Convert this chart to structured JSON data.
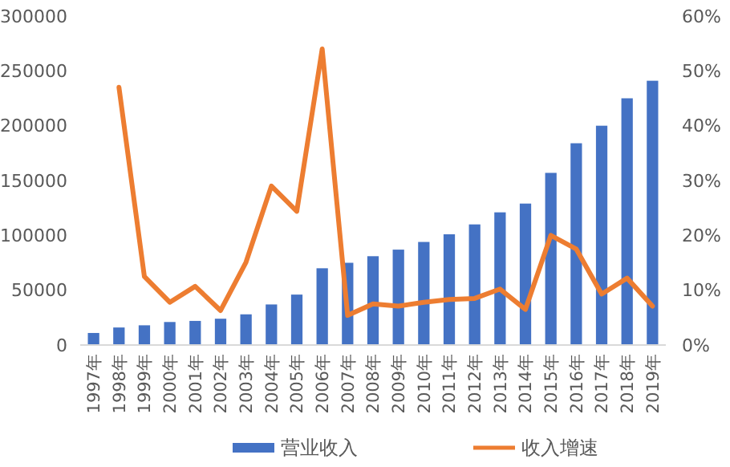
{
  "chart_data": {
    "type": "bar",
    "categories": [
      "1997年",
      "1998年",
      "1999年",
      "2000年",
      "2001年",
      "2002年",
      "2003年",
      "2004年",
      "2005年",
      "2006年",
      "2007年",
      "2008年",
      "2009年",
      "2010年",
      "2011年",
      "2012年",
      "2013年",
      "2014年",
      "2015年",
      "2016年",
      "2017年",
      "2018年",
      "2019年"
    ],
    "series": [
      {
        "name": "营业收入",
        "color": "#4472c4",
        "values": [
          11000,
          16000,
          18000,
          21000,
          22000,
          24000,
          28000,
          37000,
          46000,
          70000,
          75000,
          81000,
          87000,
          94000,
          101000,
          110000,
          121000,
          129000,
          157000,
          184000,
          200000,
          225000,
          241000
        ]
      },
      {
        "name": "收入增速",
        "type": "line",
        "axis": "y2",
        "color": "#ed7d31",
        "values": [
          null,
          47,
          12.5,
          7.8,
          10.7,
          6.3,
          15.1,
          29,
          24.4,
          54,
          5.4,
          7.5,
          7.1,
          7.8,
          8.3,
          8.5,
          10.2,
          6.5,
          20,
          17.5,
          9.3,
          12.2,
          7.1
        ]
      }
    ],
    "ylim": [
      0,
      300000
    ],
    "yticks": [
      0,
      50000,
      100000,
      150000,
      200000,
      250000,
      300000
    ],
    "y2lim": [
      0,
      60
    ],
    "y2ticks": [
      {
        "value": 0,
        "label": "0%"
      },
      {
        "value": 10,
        "label": "10%"
      },
      {
        "value": 20,
        "label": "20%"
      },
      {
        "value": 30,
        "label": "30%"
      },
      {
        "value": 40,
        "label": "40%"
      },
      {
        "value": 50,
        "label": "50%"
      },
      {
        "value": 60,
        "label": "60%"
      }
    ],
    "legend": "bottom",
    "grid": false,
    "marker": "none"
  }
}
